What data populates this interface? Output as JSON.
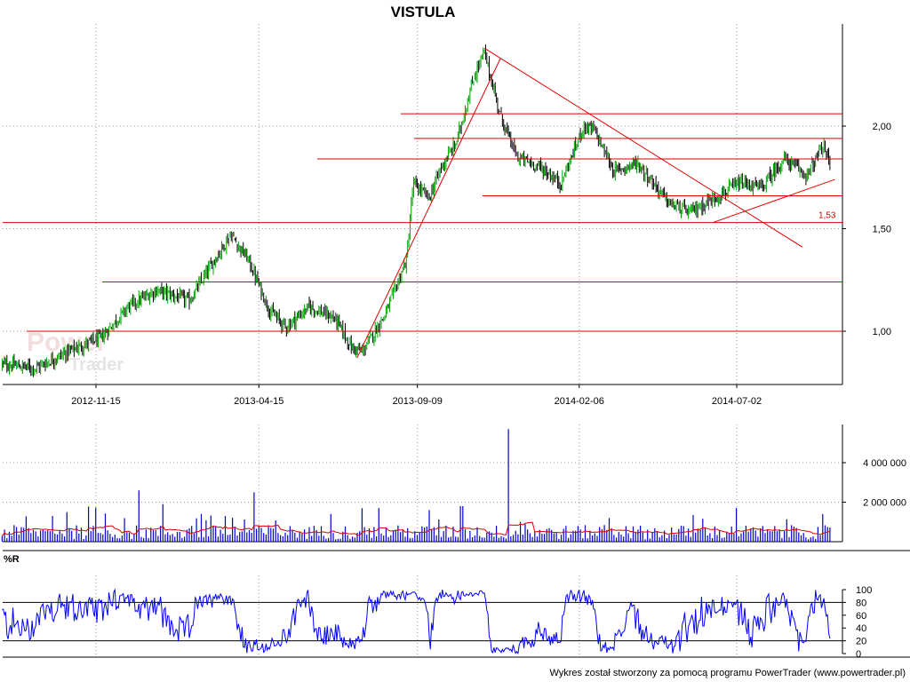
{
  "title": "VISTULA",
  "watermark": "PowerTrader",
  "footer": "Wykres został stworzony za pomocą programu PowerTrader (www.powertrader.pl)",
  "colors": {
    "up": "#00a000",
    "down": "#000000",
    "line": "#e00000",
    "volume": "#0000cc",
    "osc": "#0000ff"
  },
  "chart_data": [
    {
      "type": "candlestick",
      "title": "VISTULA",
      "x_tick_labels": [
        "2012-11-15",
        "2013-04-15",
        "2013-09-09",
        "2014-02-06",
        "2014-07-02"
      ],
      "y_tick_labels": [
        "1,00",
        "1,50",
        "2,00"
      ],
      "y_ticks": [
        1.0,
        1.5,
        2.0
      ],
      "ylim": [
        0.75,
        2.42
      ],
      "grid": true,
      "price_path_keypoints": [
        [
          "2012-08-20",
          0.84
        ],
        [
          "2012-09-20",
          0.82
        ],
        [
          "2012-10-20",
          0.9
        ],
        [
          "2012-11-20",
          0.97
        ],
        [
          "2012-12-15",
          1.12
        ],
        [
          "2013-01-10",
          1.2
        ],
        [
          "2013-02-10",
          1.15
        ],
        [
          "2013-03-05",
          1.35
        ],
        [
          "2013-03-20",
          1.47
        ],
        [
          "2013-04-05",
          1.35
        ],
        [
          "2013-04-25",
          1.1
        ],
        [
          "2013-05-10",
          1.02
        ],
        [
          "2013-06-01",
          1.12
        ],
        [
          "2013-06-25",
          1.06
        ],
        [
          "2013-07-10",
          0.92
        ],
        [
          "2013-07-20",
          0.9
        ],
        [
          "2013-08-10",
          1.08
        ],
        [
          "2013-08-30",
          1.35
        ],
        [
          "2013-09-05",
          1.72
        ],
        [
          "2013-09-20",
          1.65
        ],
        [
          "2013-10-01",
          1.8
        ],
        [
          "2013-10-15",
          1.92
        ],
        [
          "2013-11-01",
          2.25
        ],
        [
          "2013-11-10",
          2.36
        ],
        [
          "2013-11-25",
          2.05
        ],
        [
          "2013-12-10",
          1.85
        ],
        [
          "2014-01-01",
          1.8
        ],
        [
          "2014-01-20",
          1.72
        ],
        [
          "2014-02-10",
          2.0
        ],
        [
          "2014-02-20",
          1.98
        ],
        [
          "2014-03-10",
          1.78
        ],
        [
          "2014-04-01",
          1.82
        ],
        [
          "2014-05-01",
          1.62
        ],
        [
          "2014-05-20",
          1.58
        ],
        [
          "2014-06-15",
          1.66
        ],
        [
          "2014-07-05",
          1.72
        ],
        [
          "2014-07-25",
          1.7
        ],
        [
          "2014-08-15",
          1.84
        ],
        [
          "2014-09-05",
          1.76
        ],
        [
          "2014-09-20",
          1.9
        ],
        [
          "2014-09-27",
          1.82
        ]
      ],
      "support_resistance_levels": [
        1.0,
        1.24,
        1.53,
        1.66,
        1.84,
        1.94,
        2.06
      ],
      "annotation": "1,53",
      "trend_lines": [
        {
          "from": [
            "2013-07-15",
            0.87
          ],
          "to": [
            "2013-11-25",
            2.33
          ]
        },
        {
          "from": [
            "2013-11-10",
            2.38
          ],
          "to": [
            "2014-09-01",
            1.41
          ]
        },
        {
          "from": [
            "2014-06-10",
            1.53
          ],
          "to": [
            "2014-10-01",
            1.74
          ]
        }
      ]
    },
    {
      "type": "bar",
      "name": "volume",
      "y_tick_labels": [
        "2 000 000",
        "4 000 000"
      ],
      "y_ticks": [
        2000000,
        4000000
      ],
      "ylim": [
        0,
        5800000
      ],
      "typical_volume": 600000,
      "spikes": [
        [
          "2012-10-05",
          1300000
        ],
        [
          "2012-10-20",
          1500000
        ],
        [
          "2012-12-25",
          2600000
        ],
        [
          "2013-01-15",
          1900000
        ],
        [
          "2013-02-20",
          1400000
        ],
        [
          "2013-03-15",
          1300000
        ],
        [
          "2013-04-10",
          2500000
        ],
        [
          "2013-06-20",
          1400000
        ],
        [
          "2013-08-05",
          1700000
        ],
        [
          "2013-09-20",
          1600000
        ],
        [
          "2013-10-20",
          1800000
        ],
        [
          "2013-12-02",
          5700000
        ],
        [
          "2014-03-05",
          1200000
        ],
        [
          "2014-07-01",
          1700000
        ],
        [
          "2014-09-20",
          1400000
        ]
      ]
    },
    {
      "type": "line",
      "name": "%R",
      "y_tick_labels": [
        "0",
        "20",
        "40",
        "60",
        "80",
        "100"
      ],
      "y_ticks": [
        0,
        20,
        40,
        60,
        80,
        100
      ],
      "ylim": [
        0,
        100
      ],
      "horizontal_lines": [
        20,
        80
      ]
    }
  ],
  "panel_label": "%R"
}
